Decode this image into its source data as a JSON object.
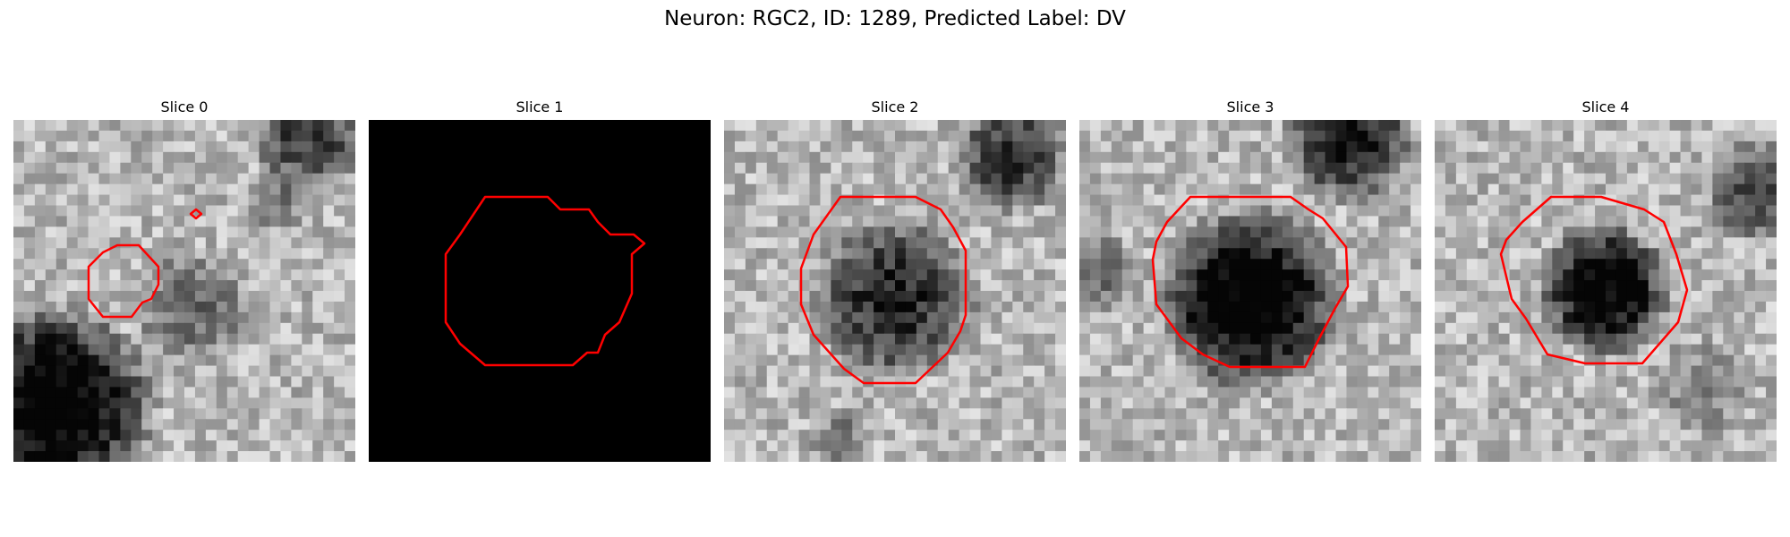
{
  "figure": {
    "title": "Neuron: RGC2, ID: 1289, Predicted Label: DV",
    "contour_color": "#ff0000"
  },
  "panels": [
    {
      "title": "Slice 0",
      "background": "grayscale-texture"
    },
    {
      "title": "Slice 1",
      "background": "black"
    },
    {
      "title": "Slice 2",
      "background": "grayscale-texture"
    },
    {
      "title": "Slice 3",
      "background": "grayscale-texture"
    },
    {
      "title": "Slice 4",
      "background": "grayscale-texture"
    }
  ]
}
